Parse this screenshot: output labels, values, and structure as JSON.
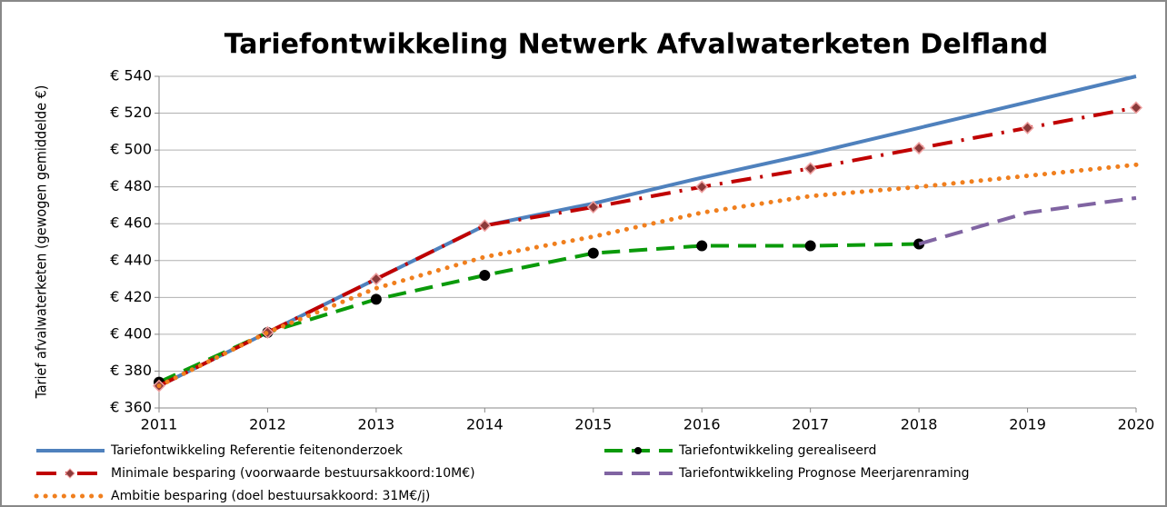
{
  "chart_data": {
    "type": "line",
    "title": "Tariefontwikkeling Netwerk Afvalwaterketen Delfland",
    "y_label": "Tarief afvalwaterketen (gewogen gemiddelde €)",
    "x": [
      2011,
      2012,
      2013,
      2014,
      2015,
      2016,
      2017,
      2018,
      2019,
      2020
    ],
    "xlim": [
      2011,
      2020
    ],
    "xticks": [
      2011,
      2012,
      2013,
      2014,
      2015,
      2016,
      2017,
      2018,
      2019,
      2020
    ],
    "ylim": [
      360,
      540
    ],
    "yticks": [
      {
        "value": 360,
        "label": "€ 360"
      },
      {
        "value": 380,
        "label": "€ 380"
      },
      {
        "value": 400,
        "label": "€ 400"
      },
      {
        "value": 420,
        "label": "€ 420"
      },
      {
        "value": 440,
        "label": "€ 440"
      },
      {
        "value": 460,
        "label": "€ 460"
      },
      {
        "value": 480,
        "label": "€ 480"
      },
      {
        "value": 500,
        "label": "€ 500"
      },
      {
        "value": 520,
        "label": "€ 520"
      },
      {
        "value": 540,
        "label": "€ 540"
      }
    ],
    "grid": true,
    "legend": "bottom",
    "series": [
      {
        "name": "Tariefontwikkeling Referentie feitenonderzoek",
        "color": "#4f81bd",
        "dash": "solid",
        "values": [
          372,
          401,
          430,
          459,
          471,
          485,
          498,
          512,
          526,
          540
        ]
      },
      {
        "name": "Tariefontwikkeling gerealiseerd",
        "color": "#0a9a0a",
        "dash": "dashed",
        "marker": "circle",
        "values": [
          374,
          401,
          419,
          432,
          444,
          448,
          448,
          449,
          null,
          null
        ]
      },
      {
        "name": "Minimale besparing (voorwaarde bestuursakkoord:10M€)",
        "color": "#c00000",
        "dash": "dashdot",
        "marker": "diamond",
        "values": [
          372,
          401,
          430,
          459,
          469,
          480,
          490,
          501,
          512,
          523
        ]
      },
      {
        "name": "Tariefontwikkeling Prognose Meerjarenraming",
        "color": "#8064a2",
        "dash": "dashed",
        "values": [
          null,
          null,
          null,
          null,
          null,
          null,
          null,
          449,
          466,
          474
        ]
      },
      {
        "name": "Ambitie besparing (doel bestuursakkoord: 31M€/j)",
        "color": "#f07f1e",
        "dash": "dotted",
        "values": [
          372,
          401,
          425,
          442,
          453,
          466,
          475,
          480,
          486,
          492
        ]
      }
    ]
  }
}
